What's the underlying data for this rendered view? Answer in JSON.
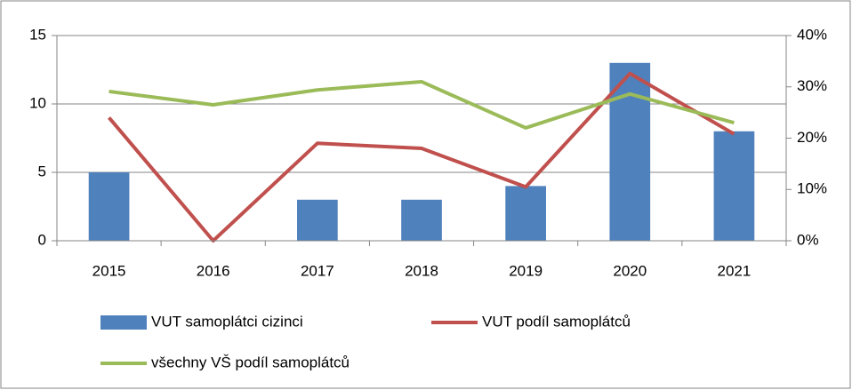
{
  "chart_data": {
    "type": "bar",
    "categories": [
      "2015",
      "2016",
      "2017",
      "2018",
      "2019",
      "2020",
      "2021"
    ],
    "series": [
      {
        "name": "VUT  samoplátci cizinci",
        "type": "bar",
        "color": "#4f81bd",
        "values": [
          5,
          0,
          3,
          3,
          4,
          13,
          8
        ]
      },
      {
        "name": "VUT  podíl samoplátců",
        "type": "line",
        "axis": "y2",
        "color": "#c0504d",
        "values": [
          24,
          0,
          19,
          18,
          10.5,
          32.6,
          20.8
        ]
      },
      {
        "name": "všechny VŠ podíl samoplátců",
        "type": "line",
        "axis": "y2",
        "color": "#9bbb59",
        "values": [
          29.1,
          26.5,
          29.4,
          31,
          22,
          28.6,
          23
        ]
      }
    ],
    "ylim": [
      0,
      15
    ],
    "yticks": [
      0,
      5,
      10,
      15
    ],
    "y2lim": [
      0,
      40
    ],
    "y2ticks": [
      {
        "value": 0,
        "label": "0%"
      },
      {
        "value": 10,
        "label": "10%"
      },
      {
        "value": 20,
        "label": "20%"
      },
      {
        "value": 30,
        "label": "30%"
      },
      {
        "value": 40,
        "label": "40%"
      }
    ],
    "grid": true,
    "legend": "bottom"
  }
}
